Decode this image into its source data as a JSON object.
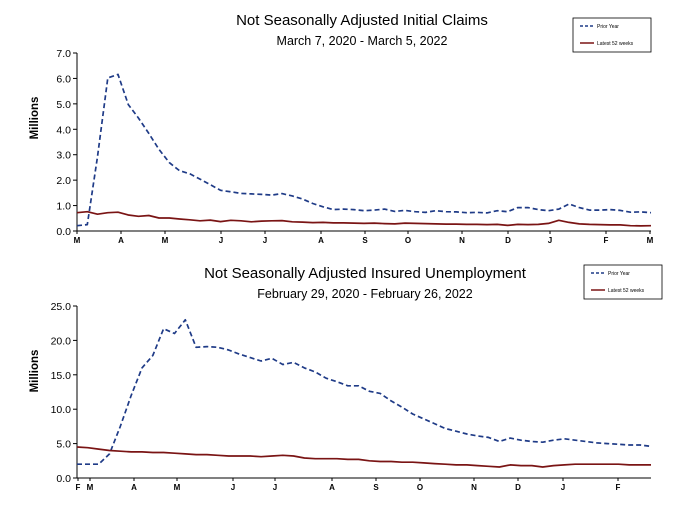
{
  "chart_data": [
    {
      "type": "line",
      "title": "Not Seasonally Adjusted Initial Claims",
      "subtitle": "March 7, 2020 - March 5, 2022",
      "ylabel": "Millions",
      "ylim": [
        0,
        7
      ],
      "yticks": [
        "0.0",
        "1.0",
        "2.0",
        "3.0",
        "4.0",
        "5.0",
        "6.0",
        "7.0"
      ],
      "xlabels": [
        "M",
        "A",
        "M",
        "J",
        "J",
        "A",
        "S",
        "O",
        "N",
        "D",
        "J",
        "F",
        "M"
      ],
      "grid": false,
      "legend_position": "top-right",
      "series": [
        {
          "name": "Prior Year",
          "color": "#1f3b87",
          "style": "dashed",
          "values": [
            0.21,
            0.25,
            2.92,
            6.02,
            6.16,
            4.97,
            4.44,
            3.84,
            3.21,
            2.69,
            2.37,
            2.25,
            2.04,
            1.82,
            1.6,
            1.54,
            1.48,
            1.46,
            1.44,
            1.41,
            1.47,
            1.38,
            1.26,
            1.08,
            0.95,
            0.84,
            0.86,
            0.84,
            0.8,
            0.82,
            0.86,
            0.77,
            0.81,
            0.76,
            0.73,
            0.8,
            0.76,
            0.75,
            0.72,
            0.73,
            0.71,
            0.8,
            0.76,
            0.92,
            0.92,
            0.84,
            0.8,
            0.86,
            1.06,
            0.92,
            0.82,
            0.82,
            0.84,
            0.81,
            0.74,
            0.75,
            0.72
          ]
        },
        {
          "name": "Latest 52 weeks",
          "color": "#7a1414",
          "style": "solid",
          "values": [
            0.72,
            0.76,
            0.66,
            0.72,
            0.74,
            0.63,
            0.58,
            0.61,
            0.51,
            0.51,
            0.47,
            0.44,
            0.4,
            0.43,
            0.37,
            0.42,
            0.4,
            0.36,
            0.39,
            0.4,
            0.41,
            0.36,
            0.35,
            0.33,
            0.34,
            0.32,
            0.32,
            0.31,
            0.3,
            0.31,
            0.29,
            0.28,
            0.31,
            0.3,
            0.29,
            0.28,
            0.27,
            0.27,
            0.26,
            0.26,
            0.25,
            0.26,
            0.22,
            0.26,
            0.25,
            0.26,
            0.3,
            0.42,
            0.34,
            0.28,
            0.26,
            0.25,
            0.24,
            0.24,
            0.21,
            0.2,
            0.21
          ]
        }
      ]
    },
    {
      "type": "line",
      "title": "Not Seasonally Adjusted Insured Unemployment",
      "subtitle": "February 29, 2020 - February 26, 2022",
      "ylabel": "Millions",
      "ylim": [
        0,
        25
      ],
      "yticks": [
        "0.0",
        "5.0",
        "10.0",
        "15.0",
        "20.0",
        "25.0"
      ],
      "xlabels": [
        "F",
        "M",
        "A",
        "M",
        "J",
        "J",
        "A",
        "S",
        "O",
        "N",
        "D",
        "J",
        "F"
      ],
      "grid": false,
      "legend_position": "top-right",
      "series": [
        {
          "name": "Prior Year",
          "color": "#1f3b87",
          "style": "dashed",
          "values": [
            2.0,
            2.0,
            2.0,
            3.5,
            7.5,
            12.0,
            16.0,
            17.8,
            21.7,
            21.0,
            23.0,
            19.0,
            19.1,
            19.0,
            18.6,
            18.0,
            17.5,
            17.0,
            17.4,
            16.5,
            16.8,
            16.0,
            15.4,
            14.5,
            14.0,
            13.4,
            13.4,
            12.6,
            12.3,
            11.2,
            10.3,
            9.3,
            8.6,
            7.9,
            7.2,
            6.8,
            6.4,
            6.1,
            5.9,
            5.3,
            5.8,
            5.5,
            5.3,
            5.2,
            5.5,
            5.7,
            5.5,
            5.3,
            5.1,
            5.0,
            4.9,
            4.8,
            4.8,
            4.6
          ]
        },
        {
          "name": "Latest 52 weeks",
          "color": "#7a1414",
          "style": "solid",
          "values": [
            4.5,
            4.4,
            4.2,
            4.0,
            3.9,
            3.8,
            3.8,
            3.7,
            3.7,
            3.6,
            3.5,
            3.4,
            3.4,
            3.3,
            3.2,
            3.2,
            3.2,
            3.1,
            3.2,
            3.3,
            3.2,
            2.9,
            2.8,
            2.8,
            2.8,
            2.7,
            2.7,
            2.5,
            2.4,
            2.4,
            2.3,
            2.3,
            2.2,
            2.1,
            2.0,
            1.9,
            1.9,
            1.8,
            1.7,
            1.6,
            1.9,
            1.8,
            1.8,
            1.6,
            1.8,
            1.9,
            2.0,
            2.0,
            2.0,
            2.0,
            2.0,
            1.9,
            1.9,
            1.9
          ]
        }
      ]
    }
  ]
}
